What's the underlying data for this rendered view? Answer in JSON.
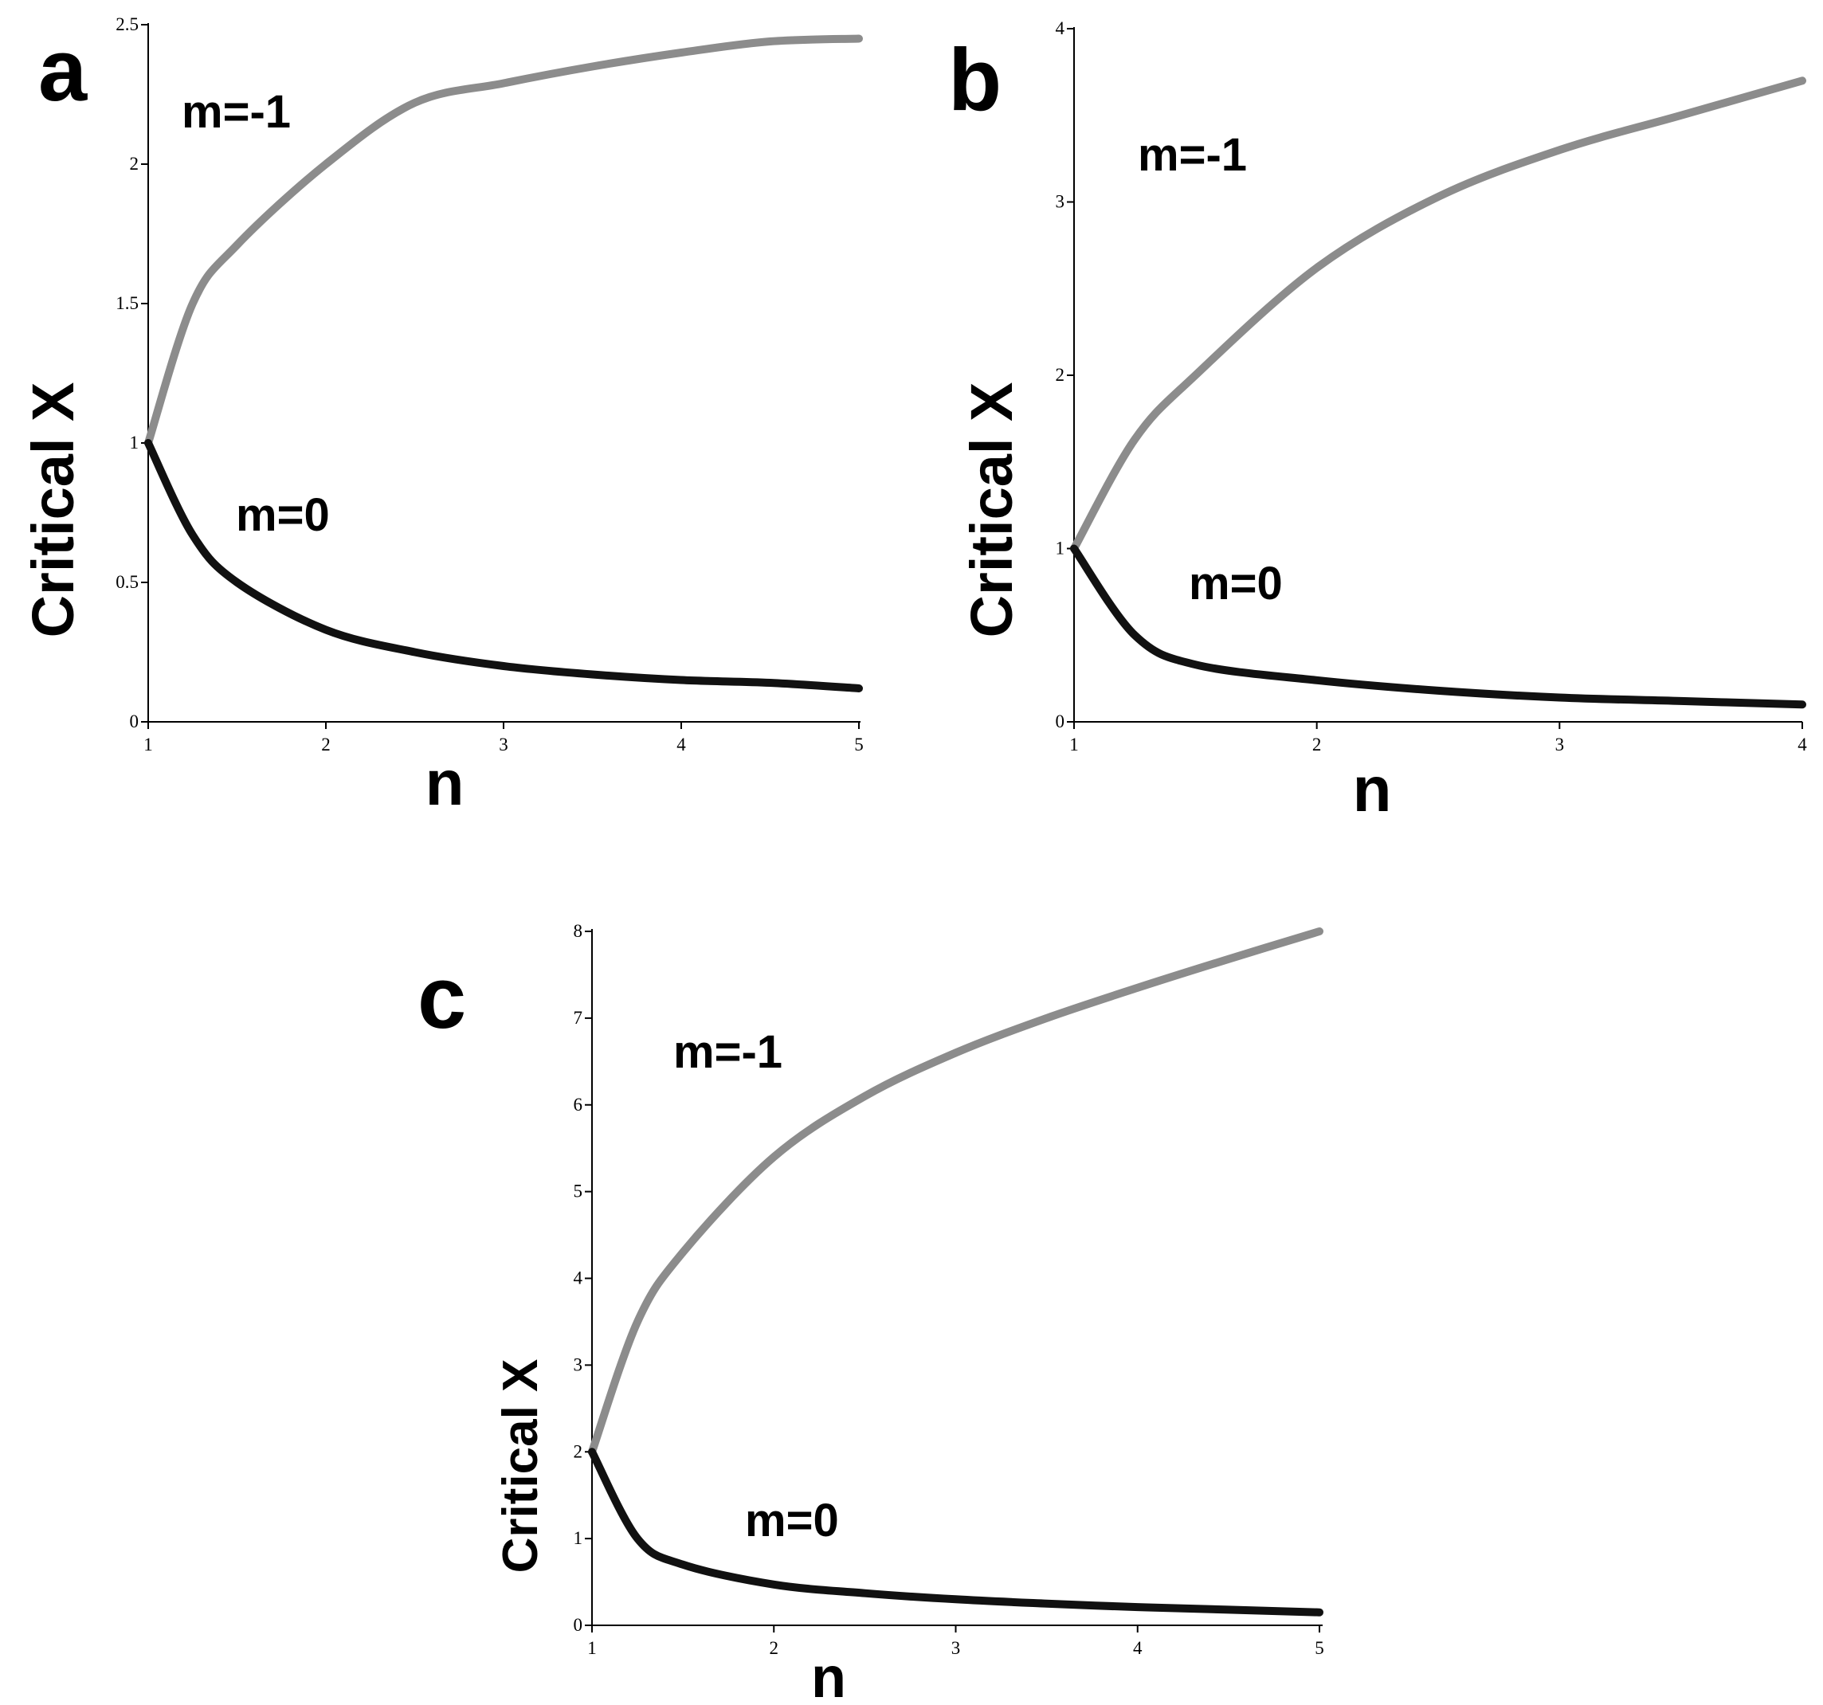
{
  "chart_data": [
    {
      "type": "line",
      "panel_label": "a",
      "xlabel": "n",
      "ylabel": "Critical X",
      "xlim": [
        1,
        5
      ],
      "ylim": [
        0,
        2.5
      ],
      "xticks": [
        "1",
        "2",
        "3",
        "4",
        "5"
      ],
      "yticks": [
        "0",
        "0.5",
        "1",
        "1.5",
        "2",
        "2.5"
      ],
      "grid": false,
      "series": [
        {
          "name": "m=-1",
          "color": "#8c8c8c",
          "x": [
            1,
            1.25,
            1.5,
            2,
            2.5,
            3,
            3.5,
            4,
            4.5,
            5
          ],
          "y": [
            1.0,
            1.5,
            1.71,
            2.0,
            2.22,
            2.29,
            2.35,
            2.4,
            2.44,
            2.45
          ]
        },
        {
          "name": "m=0",
          "color": "#111111",
          "x": [
            1,
            1.25,
            1.5,
            2,
            2.5,
            3,
            3.5,
            4,
            4.5,
            5
          ],
          "y": [
            1.0,
            0.67,
            0.5,
            0.33,
            0.25,
            0.2,
            0.17,
            0.15,
            0.14,
            0.12
          ]
        }
      ],
      "annotations": [
        "m=-1",
        "m=0"
      ]
    },
    {
      "type": "line",
      "panel_label": "b",
      "xlabel": "n",
      "ylabel": "Critical X",
      "xlim": [
        1,
        4
      ],
      "ylim": [
        0,
        4
      ],
      "xticks": [
        "1",
        "2",
        "3",
        "4"
      ],
      "yticks": [
        "0",
        "1",
        "2",
        "3",
        "4"
      ],
      "grid": false,
      "series": [
        {
          "name": "m=-1",
          "color": "#8c8c8c",
          "x": [
            1,
            1.25,
            1.5,
            2,
            2.5,
            3,
            3.5,
            4
          ],
          "y": [
            1.0,
            1.63,
            2.0,
            2.62,
            3.03,
            3.3,
            3.5,
            3.7
          ]
        },
        {
          "name": "m=0",
          "color": "#111111",
          "x": [
            1,
            1.25,
            1.5,
            2,
            2.5,
            3,
            3.5,
            4
          ],
          "y": [
            1.0,
            0.5,
            0.33,
            0.24,
            0.18,
            0.14,
            0.12,
            0.1
          ]
        }
      ],
      "annotations": [
        "m=-1",
        "m=0"
      ]
    },
    {
      "type": "line",
      "panel_label": "c",
      "xlabel": "n",
      "ylabel": "Critical X",
      "xlim": [
        1,
        5
      ],
      "ylim": [
        0,
        8
      ],
      "xticks": [
        "1",
        "2",
        "3",
        "4",
        "5"
      ],
      "yticks": [
        "0",
        "1",
        "2",
        "3",
        "4",
        "5",
        "6",
        "7",
        "8"
      ],
      "grid": false,
      "series": [
        {
          "name": "m=-1",
          "color": "#8c8c8c",
          "x": [
            1,
            1.25,
            1.5,
            2,
            2.5,
            3,
            3.5,
            4,
            4.5,
            5
          ],
          "y": [
            2.0,
            3.5,
            4.3,
            5.4,
            6.1,
            6.6,
            7.0,
            7.35,
            7.68,
            8.0
          ]
        },
        {
          "name": "m=0",
          "color": "#111111",
          "x": [
            1,
            1.25,
            1.5,
            2,
            2.5,
            3,
            3.5,
            4,
            4.5,
            5
          ],
          "y": [
            2.0,
            1.0,
            0.7,
            0.47,
            0.37,
            0.3,
            0.25,
            0.21,
            0.18,
            0.15
          ]
        }
      ],
      "annotations": [
        "m=-1",
        "m=0"
      ]
    }
  ]
}
